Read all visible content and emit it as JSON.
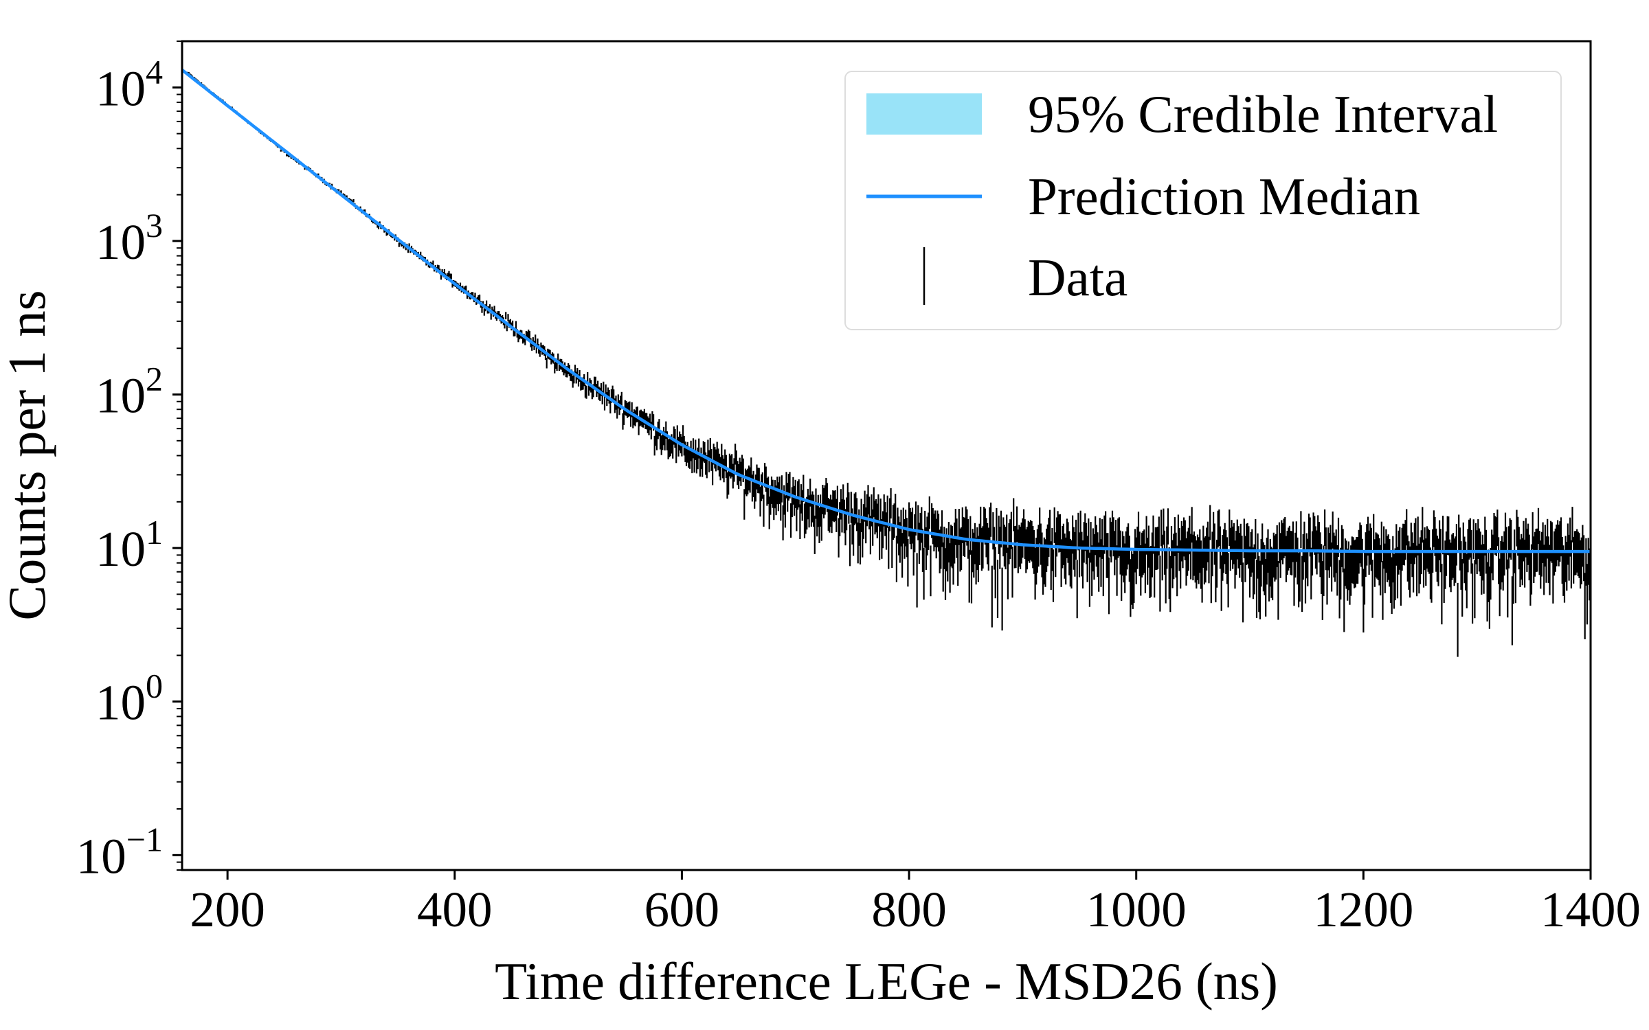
{
  "chart_data": {
    "type": "scatter",
    "title": "",
    "xlabel": "Time difference LEGe - MSD26 (ns)",
    "ylabel": "Counts per 1 ns",
    "xlim": [
      160,
      1400
    ],
    "ylim": [
      0.08,
      20000
    ],
    "yscale": "log",
    "grid": false,
    "legend_position": "top-right",
    "x_ticks": [
      200,
      400,
      600,
      800,
      1000,
      1200,
      1400
    ],
    "y_ticks": [
      {
        "value": 0.1,
        "base": "10",
        "exp": "−1"
      },
      {
        "value": 1,
        "base": "10",
        "exp": "0"
      },
      {
        "value": 10,
        "base": "10",
        "exp": "1"
      },
      {
        "value": 100,
        "base": "10",
        "exp": "2"
      },
      {
        "value": 1000,
        "base": "10",
        "exp": "3"
      },
      {
        "value": 10000,
        "base": "10",
        "exp": "4"
      }
    ],
    "legend": [
      {
        "label": "95% Credible Interval",
        "color": "#99e3f8",
        "kind": "patch"
      },
      {
        "label": "Prediction Median",
        "color": "#1e90ff",
        "kind": "line"
      },
      {
        "label": "Data",
        "color": "#000000",
        "kind": "errorbar"
      }
    ],
    "series": [
      {
        "name": "Prediction Median",
        "color": "#1e90ff",
        "x": [
          160,
          200,
          250,
          300,
          350,
          400,
          450,
          500,
          550,
          600,
          650,
          700,
          750,
          800,
          850,
          900,
          950,
          1000,
          1050,
          1100,
          1150,
          1200,
          1250,
          1300,
          1350,
          1400
        ],
        "y": [
          13000,
          7600,
          3900,
          2000,
          1025,
          526,
          275,
          145,
          80,
          47,
          30,
          21.5,
          16.4,
          13.2,
          11.4,
          10.5,
          10.0,
          9.8,
          9.7,
          9.6,
          9.6,
          9.5,
          9.5,
          9.5,
          9.5,
          9.5
        ]
      },
      {
        "name": "Data",
        "color": "#000000",
        "x": [
          165,
          200,
          250,
          300,
          350,
          400,
          450,
          500,
          550,
          600,
          650,
          700,
          750,
          800,
          850,
          900,
          950,
          1000,
          1050,
          1100,
          1150,
          1200,
          1250,
          1300,
          1350,
          1400
        ],
        "y": [
          12500,
          7700,
          3800,
          2050,
          1000,
          540,
          280,
          140,
          82,
          45,
          31,
          20,
          17,
          13,
          11,
          11,
          10,
          9,
          10,
          9,
          10,
          9,
          10,
          9,
          10,
          9
        ]
      }
    ]
  }
}
